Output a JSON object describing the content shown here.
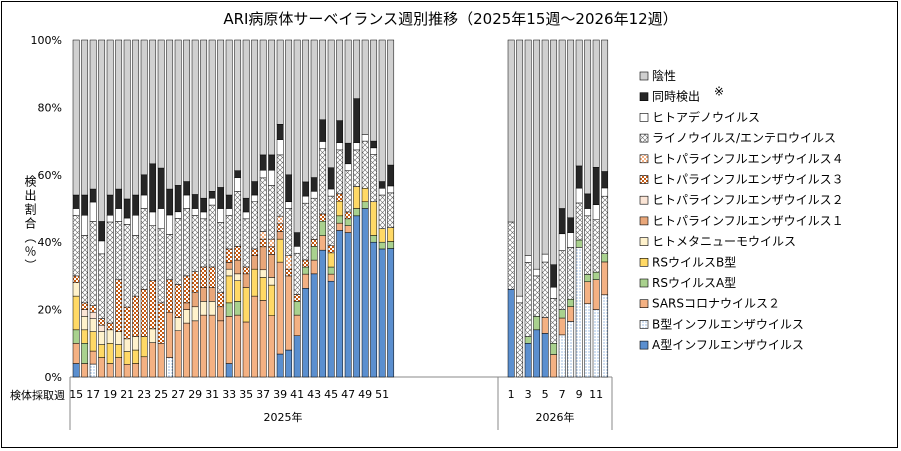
{
  "chart_data": {
    "type": "bar",
    "stacked": true,
    "title": "ARI病原体サーベイランス週別推移（2025年15週～2026年12週）",
    "ylabel": "検出割合（％）",
    "xlabel_prefix": "検体採取週",
    "ylim": [
      0,
      100
    ],
    "yticks": [
      "0%",
      "20%",
      "40%",
      "60%",
      "80%",
      "100%"
    ],
    "year_groups": [
      "2025年",
      "2026年"
    ],
    "categories_2025": [
      "15",
      "16",
      "17",
      "18",
      "19",
      "20",
      "21",
      "22",
      "23",
      "24",
      "25",
      "26",
      "27",
      "28",
      "29",
      "30",
      "31",
      "32",
      "33",
      "34",
      "35",
      "36",
      "37",
      "38",
      "39",
      "40",
      "41",
      "42",
      "43",
      "44",
      "45",
      "46",
      "47",
      "48",
      "49",
      "50",
      "51",
      "52"
    ],
    "categories_2026": [
      "1",
      "2",
      "3",
      "4",
      "5",
      "6",
      "7",
      "8",
      "9",
      "10",
      "11",
      "12"
    ],
    "tick_labels_2025": [
      "15",
      "17",
      "19",
      "21",
      "23",
      "25",
      "27",
      "29",
      "31",
      "33",
      "35",
      "37",
      "39",
      "41",
      "43",
      "45",
      "47",
      "49",
      "51"
    ],
    "tick_labels_2026": [
      "1",
      "3",
      "5",
      "7",
      "9",
      "11"
    ],
    "legend_note": "※",
    "series": [
      {
        "name": "A型インフルエンザウイルス",
        "color": "#5b8fcf",
        "pattern": "solid",
        "values": [
          4,
          0,
          0,
          0,
          0,
          0,
          0,
          0,
          0,
          0,
          0,
          0,
          0,
          0,
          0,
          0,
          0,
          0,
          4,
          0,
          0,
          0,
          0,
          0,
          6,
          8,
          12,
          25,
          30,
          35,
          27,
          40,
          42,
          44,
          50,
          40,
          38,
          37,
          26,
          0,
          10,
          14,
          11,
          0,
          0,
          0,
          0,
          0,
          0,
          0
        ]
      },
      {
        "name": "B型インフルエンザウイルス",
        "color": "#ffffff",
        "pattern": "dots-blue",
        "values": [
          0,
          0,
          4,
          0,
          0,
          0,
          0,
          0,
          0,
          0,
          0,
          6,
          0,
          0,
          0,
          0,
          0,
          0,
          0,
          0,
          0,
          0,
          0,
          0,
          0,
          0,
          0,
          0,
          0,
          0,
          0,
          0,
          0,
          0,
          0,
          0,
          0,
          0,
          0,
          0,
          0,
          0,
          0,
          0,
          10,
          15,
          35,
          20,
          18,
          20
        ]
      },
      {
        "name": "SARSコロナウイルス２",
        "color": "#f4b183",
        "pattern": "solid",
        "values": [
          6,
          4,
          4,
          6,
          4,
          6,
          4,
          4,
          6,
          10,
          10,
          14,
          14,
          16,
          16,
          18,
          18,
          16,
          14,
          18,
          16,
          24,
          20,
          16,
          24,
          22,
          6,
          4,
          4,
          4,
          2,
          2,
          2,
          0,
          0,
          0,
          0,
          0,
          0,
          0,
          0,
          0,
          4,
          4,
          4,
          4,
          0,
          6,
          8,
          8
        ]
      },
      {
        "name": "RSウイルスA型",
        "color": "#a9d18e",
        "pattern": "solid",
        "values": [
          4,
          6,
          0,
          0,
          0,
          0,
          0,
          0,
          0,
          0,
          0,
          0,
          0,
          0,
          0,
          0,
          0,
          0,
          4,
          4,
          0,
          0,
          0,
          0,
          0,
          0,
          4,
          2,
          4,
          4,
          2,
          2,
          2,
          2,
          2,
          2,
          2,
          2,
          0,
          0,
          2,
          4,
          0,
          2,
          2,
          2,
          2,
          2,
          2,
          2
        ]
      },
      {
        "name": "RSウイルスB型",
        "color": "#ffd966",
        "pattern": "solid",
        "values": [
          10,
          4,
          6,
          4,
          6,
          4,
          4,
          4,
          6,
          0,
          0,
          0,
          0,
          0,
          0,
          0,
          0,
          0,
          8,
          6,
          10,
          8,
          6,
          8,
          6,
          0,
          0,
          0,
          0,
          0,
          4,
          4,
          0,
          6,
          4,
          10,
          4,
          4,
          0,
          0,
          0,
          0,
          0,
          0,
          0,
          0,
          0,
          0,
          0,
          0
        ]
      },
      {
        "name": "ヒトメタニューモウイルス",
        "color": "#fff2cc",
        "pattern": "solid",
        "values": [
          4,
          4,
          4,
          4,
          4,
          4,
          4,
          4,
          0,
          4,
          0,
          0,
          4,
          4,
          4,
          4,
          4,
          0,
          2,
          2,
          0,
          0,
          2,
          2,
          0,
          0,
          0,
          0,
          0,
          0,
          0,
          0,
          0,
          0,
          0,
          0,
          0,
          0,
          0,
          0,
          0,
          0,
          0,
          0,
          0,
          0,
          0,
          0,
          0,
          0
        ]
      },
      {
        "name": "ヒトパラインフルエンザウイルス１",
        "color": "#e9a77a",
        "pattern": "solid",
        "values": [
          0,
          0,
          0,
          0,
          0,
          0,
          0,
          0,
          0,
          0,
          0,
          0,
          0,
          2,
          4,
          4,
          4,
          4,
          2,
          4,
          4,
          4,
          6,
          6,
          2,
          0,
          0,
          0,
          0,
          0,
          0,
          0,
          0,
          0,
          0,
          0,
          0,
          0,
          0,
          0,
          0,
          0,
          0,
          0,
          0,
          0,
          0,
          0,
          0,
          0
        ]
      },
      {
        "name": "ヒトパラインフルエンザウイルス２",
        "color": "#fbe5d6",
        "pattern": "solid",
        "values": [
          0,
          2,
          2,
          2,
          0,
          0,
          0,
          0,
          0,
          0,
          0,
          0,
          0,
          0,
          0,
          0,
          0,
          0,
          0,
          0,
          0,
          0,
          0,
          0,
          0,
          0,
          0,
          0,
          0,
          0,
          0,
          0,
          0,
          0,
          0,
          0,
          0,
          0,
          0,
          0,
          0,
          0,
          0,
          0,
          0,
          0,
          0,
          0,
          0,
          0
        ]
      },
      {
        "name": "ヒトパラインフルエンザウイルス３",
        "color": "#c55a11",
        "pattern": "checker",
        "values": [
          2,
          2,
          2,
          2,
          2,
          16,
          10,
          12,
          14,
          14,
          12,
          10,
          10,
          8,
          6,
          6,
          6,
          4,
          4,
          4,
          2,
          2,
          2,
          2,
          2,
          2,
          2,
          2,
          2,
          2,
          2,
          2,
          2,
          0,
          0,
          0,
          0,
          0,
          0,
          0,
          0,
          0,
          0,
          0,
          0,
          0,
          0,
          0,
          0,
          0
        ]
      },
      {
        "name": "ヒトパラインフルエンザウイルス４",
        "color": "#f8cbad",
        "pattern": "checker-light",
        "values": [
          0,
          0,
          0,
          0,
          0,
          0,
          0,
          0,
          0,
          0,
          0,
          0,
          0,
          0,
          0,
          0,
          0,
          0,
          0,
          0,
          0,
          0,
          2,
          2,
          2,
          4,
          0,
          0,
          0,
          0,
          0,
          0,
          0,
          0,
          0,
          0,
          0,
          0,
          0,
          0,
          0,
          0,
          0,
          0,
          0,
          0,
          0,
          0,
          0,
          0
        ]
      },
      {
        "name": "ライノウイルス/エンテロウイルス",
        "color": "#ffffff",
        "pattern": "crosshatch",
        "values": [
          18,
          20,
          26,
          20,
          30,
          18,
          26,
          18,
          24,
          16,
          22,
          14,
          20,
          20,
          16,
          14,
          18,
          20,
          10,
          16,
          14,
          14,
          14,
          14,
          16,
          14,
          12,
          16,
          12,
          18,
          14,
          12,
          12,
          10,
          14,
          14,
          10,
          10,
          20,
          22,
          22,
          12,
          14,
          8,
          14,
          14,
          10,
          16,
          14,
          14
        ]
      },
      {
        "name": "ヒトアデノウイルス",
        "color": "#ffffff",
        "pattern": "solid",
        "values": [
          2,
          6,
          6,
          4,
          2,
          4,
          2,
          6,
          4,
          4,
          6,
          6,
          2,
          4,
          2,
          2,
          2,
          4,
          2,
          4,
          2,
          2,
          2,
          4,
          4,
          2,
          2,
          2,
          2,
          2,
          2,
          2,
          2,
          2,
          2,
          2,
          2,
          2,
          0,
          2,
          2,
          2,
          2,
          2,
          4,
          4,
          4,
          2,
          4,
          2
        ]
      },
      {
        "name": "同時検出",
        "color": "#262626",
        "pattern": "solid",
        "values": [
          4,
          6,
          4,
          6,
          6,
          6,
          6,
          6,
          6,
          14,
          12,
          8,
          8,
          4,
          4,
          4,
          2,
          6,
          4,
          2,
          4,
          4,
          4,
          4,
          4,
          8,
          4,
          4,
          4,
          6,
          6,
          6,
          6,
          12,
          0,
          2,
          2,
          6,
          0,
          0,
          0,
          0,
          0,
          4,
          6,
          4,
          6,
          4,
          10,
          4
        ]
      },
      {
        "name": "陰性",
        "color": "#d0d0d0",
        "pattern": "solid",
        "values": [
          46,
          46,
          46,
          56,
          46,
          46,
          50,
          46,
          40,
          36,
          38,
          46,
          44,
          42,
          44,
          46,
          44,
          42,
          46,
          38,
          46,
          42,
          30,
          30,
          22,
          40,
          56,
          40,
          40,
          22,
          36,
          22,
          30,
          16,
          28,
          30,
          42,
          36,
          54,
          76,
          64,
          68,
          54,
          40,
          40,
          48,
          34,
          42,
          34,
          32
        ]
      }
    ]
  }
}
